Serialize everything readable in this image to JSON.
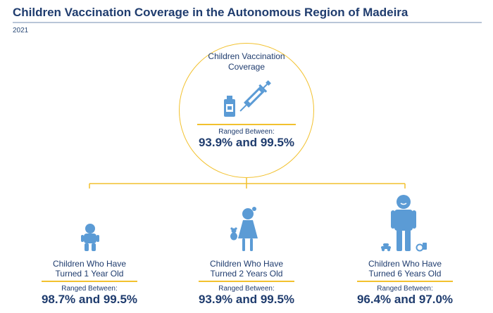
{
  "header": {
    "title": "Children Vaccination Coverage in the Autonomous Region of Madeira",
    "year": "2021"
  },
  "overall": {
    "label_line1": "Children Vaccination",
    "label_line2": "Coverage",
    "range_label": "Ranged Between:",
    "range": "93.9% and 99.5%",
    "icons": [
      "vaccine-vial-icon",
      "syringe-icon"
    ]
  },
  "groups": [
    {
      "label_line1": "Children Who Have",
      "label_line2": "Turned 1 Year Old",
      "range_label": "Ranged Between:",
      "range": "98.7% and 99.5%",
      "icon": "baby-icon"
    },
    {
      "label_line1": "Children Who Have",
      "label_line2": "Turned 2 Years Old",
      "range_label": "Ranged Between:",
      "range": "93.9% and 99.5%",
      "icon": "girl-with-teddy-icon"
    },
    {
      "label_line1": "Children Who Have",
      "label_line2": "Turned 6 Years Old",
      "range_label": "Ranged Between:",
      "range": "96.4% and 97.0%",
      "icon": "boy-with-toys-icon"
    }
  ],
  "colors": {
    "title": "#1f3c6e",
    "accent_yellow": "#f2c12e",
    "icon_blue": "#5b9bd5",
    "rule_grey": "#b9c6d8"
  }
}
